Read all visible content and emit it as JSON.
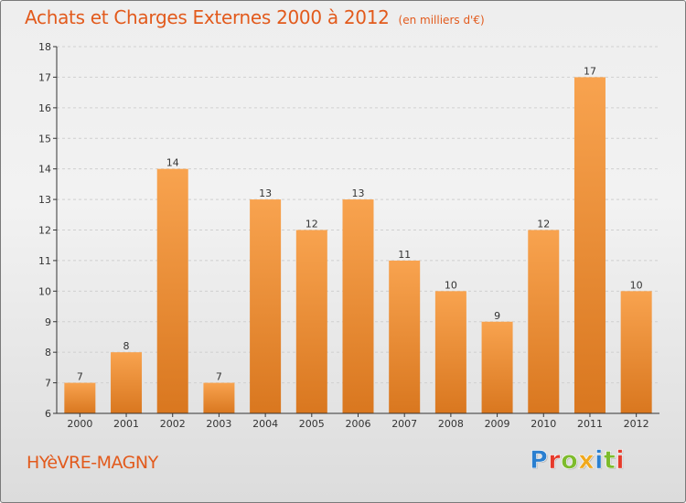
{
  "header": {
    "title": "Achats et Charges Externes 2000 à 2012",
    "subtitle": "(en milliers d'€)"
  },
  "footer": {
    "commune": "HYèVRE-MAGNY",
    "logo": {
      "text": "Proxiti",
      "letters": [
        {
          "ch": "P",
          "color": "#2a7fd0"
        },
        {
          "ch": "r",
          "color": "#e63a2b"
        },
        {
          "ch": "o",
          "color": "#7dbb2c"
        },
        {
          "ch": "x",
          "color": "#f0a81c"
        },
        {
          "ch": "i",
          "color": "#2a7fd0"
        },
        {
          "ch": "t",
          "color": "#7dbb2c"
        },
        {
          "ch": "i",
          "color": "#e63a2b"
        }
      ]
    }
  },
  "colors": {
    "title": "#e25a1c",
    "bar_light": "#f8a34f",
    "bar_dark": "#d9771f",
    "grid": "#d0d0d0",
    "axis": "#333333"
  },
  "chart_data": {
    "type": "bar",
    "title": "Achats et Charges Externes 2000 à 2012",
    "subtitle": "(en milliers d'€)",
    "xlabel": "",
    "ylabel": "",
    "categories": [
      "2000",
      "2001",
      "2002",
      "2003",
      "2004",
      "2005",
      "2006",
      "2007",
      "2008",
      "2009",
      "2010",
      "2011",
      "2012"
    ],
    "values": [
      7,
      8,
      14,
      7,
      13,
      12,
      13,
      11,
      10,
      9,
      12,
      17,
      10
    ],
    "data_labels": [
      "7",
      "8",
      "14",
      "7",
      "13",
      "12",
      "13",
      "11",
      "10",
      "9",
      "12",
      "17",
      "10"
    ],
    "ylim": [
      6,
      18
    ],
    "yticks": [
      "6",
      "7",
      "8",
      "9",
      "10",
      "11",
      "12",
      "13",
      "14",
      "15",
      "16",
      "17",
      "18"
    ],
    "grid": "horizontal dashed",
    "legend": "none"
  }
}
